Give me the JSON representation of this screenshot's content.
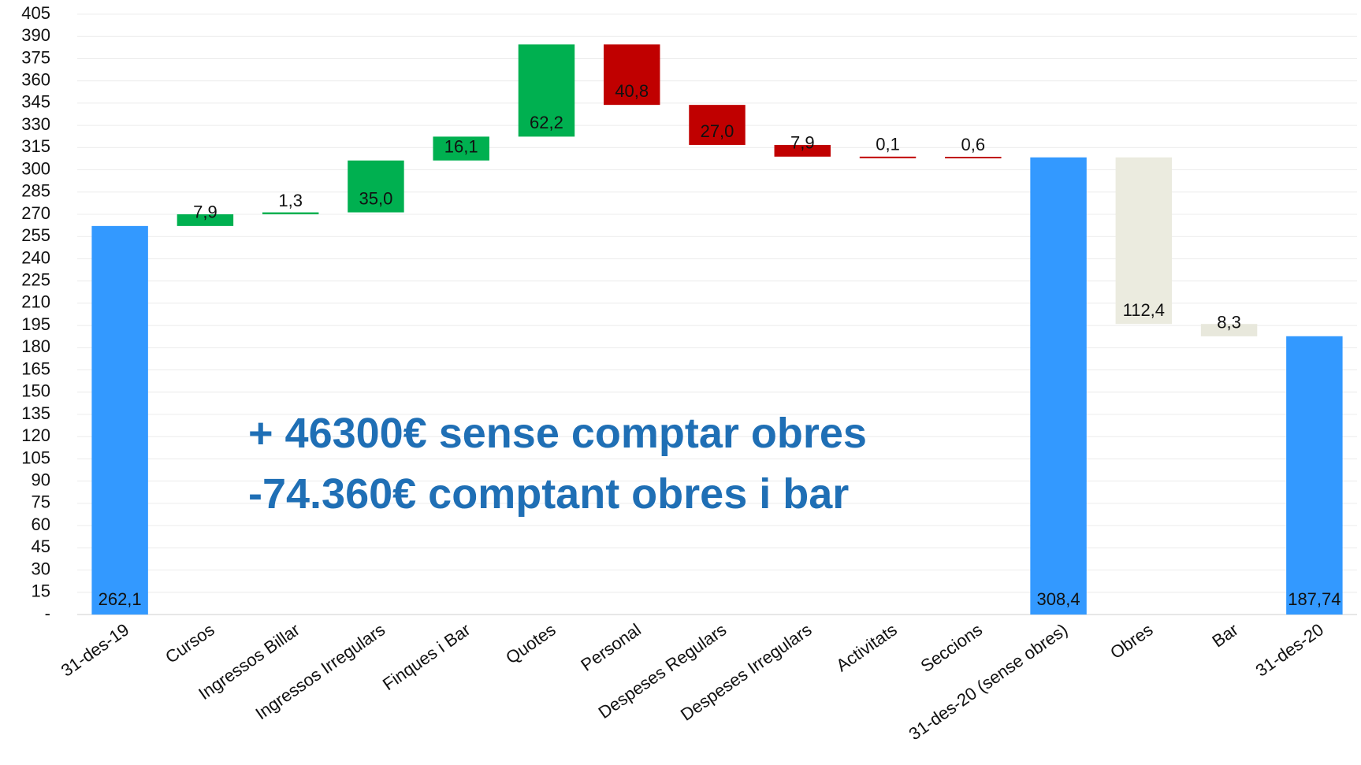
{
  "chart_data": {
    "type": "waterfall",
    "categories": [
      "31-des-19",
      "Cursos",
      "Ingressos Billar",
      "Ingressos Irregulars",
      "Finques i Bar",
      "Quotes",
      "Personal",
      "Despeses Regulars",
      "Despeses Irregulars",
      "Activitats",
      "Seccions",
      "31-des-20 (sense obres)",
      "Obres",
      "Bar",
      "31-des-20"
    ],
    "measure": [
      "absolute",
      "relative",
      "relative",
      "relative",
      "relative",
      "relative",
      "relative",
      "relative",
      "relative",
      "relative",
      "relative",
      "absolute",
      "relative",
      "relative",
      "absolute"
    ],
    "values": [
      262.1,
      7.9,
      1.3,
      35.0,
      16.1,
      62.2,
      -40.8,
      -27.0,
      -7.9,
      -0.1,
      -0.6,
      308.4,
      -112.4,
      -8.3,
      187.74
    ],
    "value_labels": [
      "262,1",
      "7,9",
      "1,3",
      "35,0",
      "16,1",
      "62,2",
      "40,8",
      "27,0",
      "7,9",
      "0,1",
      "0,6",
      "308,4",
      "112,4",
      "8,3",
      "187,74"
    ],
    "colors": [
      "#3399ff",
      "#00b050",
      "#00b050",
      "#00b050",
      "#00b050",
      "#00b050",
      "#c00000",
      "#c00000",
      "#c00000",
      "#c00000",
      "#c00000",
      "#3399ff",
      "#ebebdf",
      "#e8e8dc",
      "#3399ff"
    ],
    "ylim": [
      0,
      405
    ],
    "yticks": [
      {
        "value": 0,
        "label": "-"
      },
      15,
      30,
      45,
      60,
      75,
      90,
      105,
      120,
      135,
      150,
      165,
      180,
      195,
      210,
      225,
      240,
      255,
      270,
      285,
      300,
      315,
      330,
      345,
      360,
      375,
      390,
      405
    ],
    "grid": true,
    "annotations": [
      "+ 46300€ sense comptar obres",
      "-74.360€ comptant obres i bar"
    ]
  }
}
